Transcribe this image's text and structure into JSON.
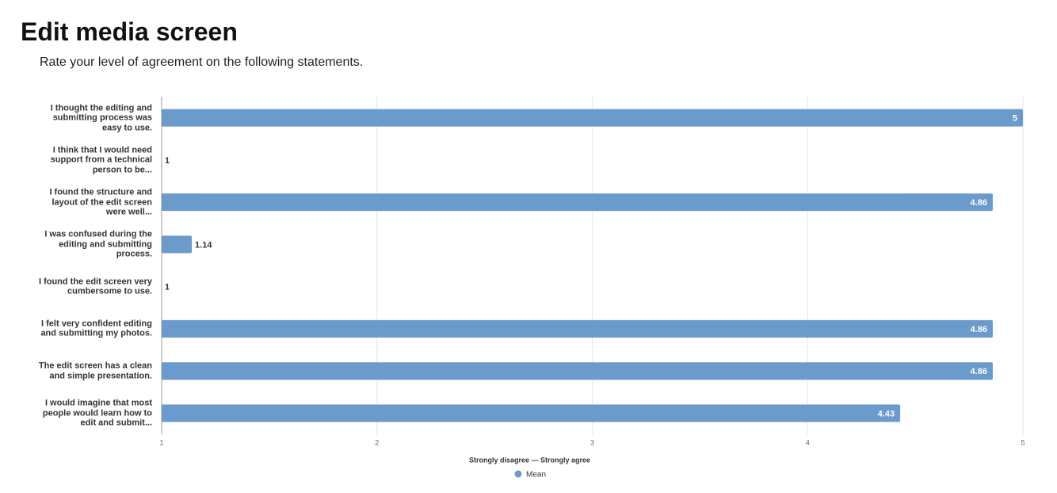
{
  "chart_data": {
    "type": "bar",
    "orientation": "horizontal",
    "title": "Edit media screen",
    "subtitle": "Rate your level of agreement on the following statements.",
    "categories": [
      "I thought the editing and submitting process was easy to use.",
      "I think that I would need support from a technical person to be...",
      "I found the structure and layout of the edit screen were well...",
      "I was confused during the editing and submitting process.",
      "I found the edit screen very cumbersome to use.",
      "I felt very confident editing and submitting my photos.",
      "The edit screen has a clean and simple presentation.",
      "I would imagine that most people would learn how to edit and submit..."
    ],
    "series": [
      {
        "name": "Mean",
        "color": "#6a9bcc",
        "values": [
          5,
          1,
          4.86,
          1.14,
          1,
          4.86,
          4.86,
          4.43
        ]
      }
    ],
    "xlim": [
      1,
      5
    ],
    "xticks": [
      1,
      2,
      3,
      4,
      5
    ],
    "xlabel": "Strongly disagree — Strongly agree",
    "grid": true,
    "legend": "bottom"
  }
}
